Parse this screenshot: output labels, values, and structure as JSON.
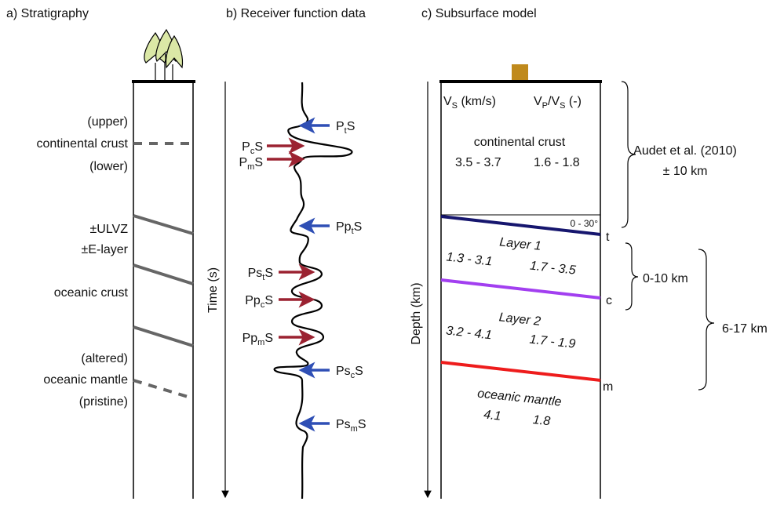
{
  "panels": [
    {
      "title": "a) Stratigraphy",
      "labels": [
        "(upper)",
        "continental crust",
        "(lower)",
        "±ULVZ",
        "±E-layer",
        "oceanic crust",
        "(altered)",
        "oceanic mantle",
        "(pristine)"
      ]
    },
    {
      "title": "b) Receiver function data",
      "axis_label": "Time (s)",
      "phases": [
        [
          {
            "text": "P"
          },
          {
            "text": "t",
            "sub": true
          },
          {
            "text": "S"
          }
        ],
        [
          {
            "text": "P"
          },
          {
            "text": "c",
            "sub": true
          },
          {
            "text": "S"
          }
        ],
        [
          {
            "text": "P"
          },
          {
            "text": "m",
            "sub": true
          },
          {
            "text": "S"
          }
        ],
        [
          {
            "text": "Pp"
          },
          {
            "text": "t",
            "sub": true
          },
          {
            "text": "S"
          }
        ],
        [
          {
            "text": "Ps"
          },
          {
            "text": "t",
            "sub": true
          },
          {
            "text": "S"
          }
        ],
        [
          {
            "text": "Pp"
          },
          {
            "text": "c",
            "sub": true
          },
          {
            "text": "S"
          }
        ],
        [
          {
            "text": "Pp"
          },
          {
            "text": "m",
            "sub": true
          },
          {
            "text": "S"
          }
        ],
        [
          {
            "text": "Ps"
          },
          {
            "text": "c",
            "sub": true
          },
          {
            "text": "S"
          }
        ],
        [
          {
            "text": "Ps"
          },
          {
            "text": "m",
            "sub": true
          },
          {
            "text": "S"
          }
        ]
      ]
    },
    {
      "title": "c) Subsurface model",
      "axis_label": "Depth (km)",
      "header": {
        "vs": [
          {
            "text": "V"
          },
          {
            "text": "S",
            "sub": true
          },
          {
            "text": " (km/s)"
          }
        ],
        "vpvs": [
          {
            "text": "V"
          },
          {
            "text": "P",
            "sub": true
          },
          {
            "text": "/V"
          },
          {
            "text": "S",
            "sub": true
          },
          {
            "text": " (-)"
          }
        ]
      },
      "layers": [
        {
          "name": "continental crust",
          "vs": "3.5 - 3.7",
          "vpvs": "1.6 - 1.8"
        },
        {
          "name": "Layer 1",
          "vs": "1.3 - 3.1",
          "vpvs": "1.7 - 3.5"
        },
        {
          "name": "Layer 2",
          "vs": "3.2 - 4.1",
          "vpvs": "1.7 - 1.9"
        },
        {
          "name": "oceanic mantle",
          "vs": "4.1",
          "vpvs": "1.8"
        }
      ],
      "dip": "0 - 30°",
      "interfaces": [
        "t",
        "c",
        "m"
      ],
      "annotations": [
        "Audet et al. (2010)",
        "± 10 km",
        "0-10 km",
        "6-17 km"
      ]
    }
  ]
}
